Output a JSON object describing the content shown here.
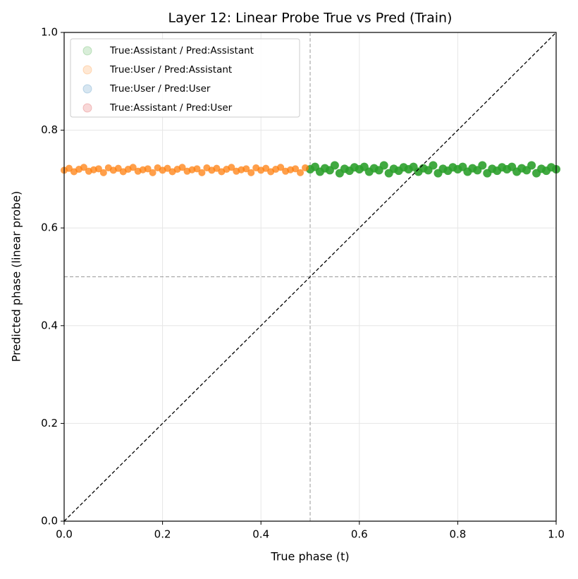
{
  "chart_data": {
    "type": "scatter",
    "title": "Layer 12: Linear Probe True vs Pred (Train)",
    "x_label": "True phase (t)",
    "y_label": "Predicted phase (linear probe)",
    "xlim": [
      0,
      1
    ],
    "ylim": [
      0,
      1
    ],
    "xticks": [
      {
        "value": 0,
        "label": "0.0"
      },
      0.2,
      0.4,
      0.6,
      0.8,
      {
        "value": 1,
        "label": "1.0"
      }
    ],
    "yticks": [
      {
        "value": 0,
        "label": "0.0"
      },
      0.2,
      0.4,
      0.6,
      0.8,
      {
        "value": 1,
        "label": "1.0"
      }
    ],
    "grid": true,
    "legend": "upper left",
    "diagonal": true,
    "vlines": [
      0.5
    ],
    "hlines": [
      0.5
    ],
    "series": [
      {
        "name": "True:Assistant / Pred:Assistant",
        "color": "#2ca02c",
        "x": [
          0.5,
          0.51,
          0.52,
          0.53,
          0.54,
          0.55,
          0.56,
          0.57,
          0.58,
          0.59,
          0.6,
          0.61,
          0.62,
          0.63,
          0.64,
          0.65,
          0.66,
          0.67,
          0.68,
          0.69,
          0.7,
          0.71,
          0.72,
          0.73,
          0.74,
          0.75,
          0.76,
          0.77,
          0.78,
          0.79,
          0.8,
          0.81,
          0.82,
          0.83,
          0.84,
          0.85,
          0.86,
          0.87,
          0.88,
          0.89,
          0.9,
          0.91,
          0.92,
          0.93,
          0.94,
          0.95,
          0.96,
          0.97,
          0.98,
          0.99,
          1.0
        ],
        "values": [
          0.72,
          0.725,
          0.715,
          0.722,
          0.718,
          0.728,
          0.712,
          0.721,
          0.717,
          0.724,
          0.72,
          0.725,
          0.715,
          0.722,
          0.718,
          0.728,
          0.712,
          0.721,
          0.717,
          0.724,
          0.72,
          0.725,
          0.715,
          0.722,
          0.718,
          0.728,
          0.712,
          0.721,
          0.717,
          0.724,
          0.72,
          0.725,
          0.715,
          0.722,
          0.718,
          0.728,
          0.712,
          0.721,
          0.717,
          0.724,
          0.72,
          0.725,
          0.715,
          0.722,
          0.718,
          0.728,
          0.712,
          0.721,
          0.717,
          0.724,
          0.72
        ]
      },
      {
        "name": "True:User / Pred:Assistant",
        "color": "#ff7f0e",
        "x": [
          0.0,
          0.01,
          0.02,
          0.03,
          0.04,
          0.05,
          0.06,
          0.07,
          0.08,
          0.09,
          0.1,
          0.11,
          0.12,
          0.13,
          0.14,
          0.15,
          0.16,
          0.17,
          0.18,
          0.19,
          0.2,
          0.21,
          0.22,
          0.23,
          0.24,
          0.25,
          0.26,
          0.27,
          0.28,
          0.29,
          0.3,
          0.31,
          0.32,
          0.33,
          0.34,
          0.35,
          0.36,
          0.37,
          0.38,
          0.39,
          0.4,
          0.41,
          0.42,
          0.43,
          0.44,
          0.45,
          0.46,
          0.47,
          0.48,
          0.49
        ],
        "values": [
          0.718,
          0.722,
          0.715,
          0.72,
          0.724,
          0.716,
          0.719,
          0.721,
          0.713,
          0.723,
          0.718,
          0.722,
          0.715,
          0.72,
          0.724,
          0.716,
          0.719,
          0.721,
          0.713,
          0.723,
          0.718,
          0.722,
          0.715,
          0.72,
          0.724,
          0.716,
          0.719,
          0.721,
          0.713,
          0.723,
          0.718,
          0.722,
          0.715,
          0.72,
          0.724,
          0.716,
          0.719,
          0.721,
          0.713,
          0.723,
          0.718,
          0.722,
          0.715,
          0.72,
          0.724,
          0.716,
          0.719,
          0.721,
          0.713,
          0.723
        ]
      },
      {
        "name": "True:User / Pred:User",
        "color": "#1f77b4",
        "x": [],
        "values": []
      },
      {
        "name": "True:Assistant / Pred:User",
        "color": "#d62728",
        "x": [],
        "values": []
      }
    ]
  }
}
